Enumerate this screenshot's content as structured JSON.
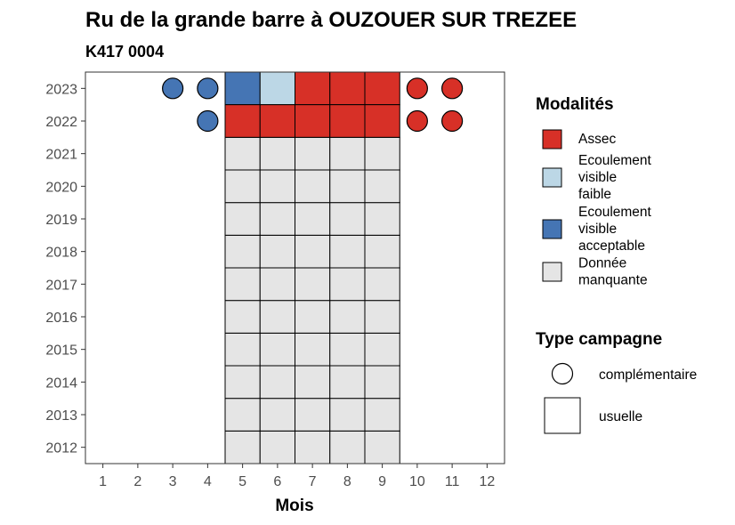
{
  "chart_data": {
    "type": "heatmap",
    "title": "Ru de la grande barre à OUZOUER SUR TREZEE",
    "subtitle": "K417 0004",
    "xlabel": "Mois",
    "ylabel": "",
    "x_ticks": [
      "1",
      "2",
      "3",
      "4",
      "5",
      "6",
      "7",
      "8",
      "9",
      "10",
      "11",
      "12"
    ],
    "y_ticks": [
      "2012",
      "2013",
      "2014",
      "2015",
      "2016",
      "2017",
      "2018",
      "2019",
      "2020",
      "2021",
      "2022",
      "2023"
    ],
    "grid": false,
    "legend_position": "right",
    "modalites": {
      "title": "Modalités",
      "entries": [
        {
          "key": "assec",
          "label": [
            "Assec"
          ],
          "color": "#d73027"
        },
        {
          "key": "faible",
          "label": [
            "Ecoulement",
            "visible",
            "faible"
          ],
          "color": "#bcd7e6"
        },
        {
          "key": "acceptable",
          "label": [
            "Ecoulement",
            "visible",
            "acceptable"
          ],
          "color": "#4575b4"
        },
        {
          "key": "manquante",
          "label": [
            "Donnée",
            "manquante"
          ],
          "color": "#e5e5e5"
        }
      ]
    },
    "campagne": {
      "title": "Type campagne",
      "entries": [
        {
          "key": "complementaire",
          "label": "complémentaire",
          "shape": "circle"
        },
        {
          "key": "usuelle",
          "label": "usuelle",
          "shape": "square"
        }
      ]
    },
    "points": [
      {
        "year": 2023,
        "month": 3,
        "modalite": "acceptable",
        "campagne": "complementaire"
      },
      {
        "year": 2023,
        "month": 4,
        "modalite": "acceptable",
        "campagne": "complementaire"
      },
      {
        "year": 2023,
        "month": 5,
        "modalite": "acceptable",
        "campagne": "usuelle"
      },
      {
        "year": 2023,
        "month": 6,
        "modalite": "faible",
        "campagne": "usuelle"
      },
      {
        "year": 2023,
        "month": 7,
        "modalite": "assec",
        "campagne": "usuelle"
      },
      {
        "year": 2023,
        "month": 8,
        "modalite": "assec",
        "campagne": "usuelle"
      },
      {
        "year": 2023,
        "month": 9,
        "modalite": "assec",
        "campagne": "usuelle"
      },
      {
        "year": 2023,
        "month": 10,
        "modalite": "assec",
        "campagne": "complementaire"
      },
      {
        "year": 2023,
        "month": 11,
        "modalite": "assec",
        "campagne": "complementaire"
      },
      {
        "year": 2022,
        "month": 4,
        "modalite": "acceptable",
        "campagne": "complementaire"
      },
      {
        "year": 2022,
        "month": 5,
        "modalite": "assec",
        "campagne": "usuelle"
      },
      {
        "year": 2022,
        "month": 6,
        "modalite": "assec",
        "campagne": "usuelle"
      },
      {
        "year": 2022,
        "month": 7,
        "modalite": "assec",
        "campagne": "usuelle"
      },
      {
        "year": 2022,
        "month": 8,
        "modalite": "assec",
        "campagne": "usuelle"
      },
      {
        "year": 2022,
        "month": 9,
        "modalite": "assec",
        "campagne": "usuelle"
      },
      {
        "year": 2022,
        "month": 10,
        "modalite": "assec",
        "campagne": "complementaire"
      },
      {
        "year": 2022,
        "month": 11,
        "modalite": "assec",
        "campagne": "complementaire"
      }
    ],
    "missing": {
      "years": [
        2012,
        2021
      ],
      "months": [
        5,
        9
      ],
      "modalite": "manquante",
      "campagne": "usuelle"
    }
  }
}
